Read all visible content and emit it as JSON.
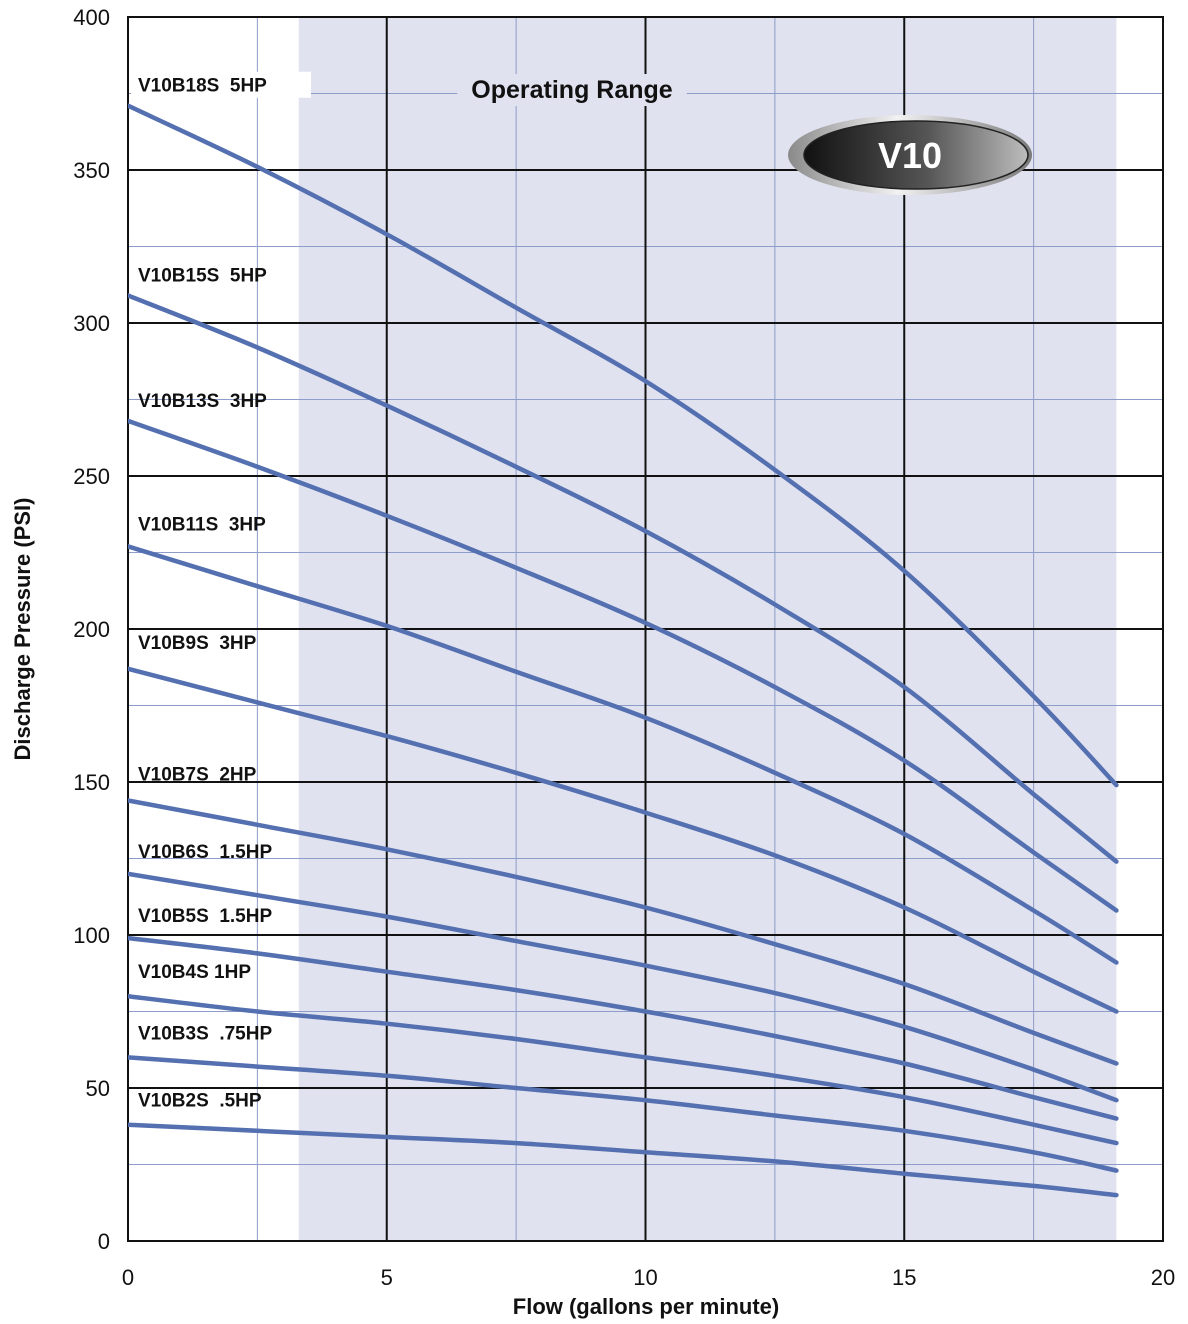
{
  "chart_data": {
    "type": "line",
    "title": "",
    "xlabel": "Flow (gallons per minute)",
    "ylabel": "Discharge Pressure (PSI)",
    "xlim": [
      0,
      20
    ],
    "ylim": [
      0,
      400
    ],
    "x_ticks": [
      0,
      5,
      10,
      15,
      20
    ],
    "y_ticks": [
      0,
      50,
      100,
      150,
      200,
      250,
      300,
      350,
      400
    ],
    "grid": true,
    "operating_range": {
      "label": "Operating Range",
      "x": [
        3.3,
        19.1
      ],
      "color": "#e0e2f0"
    },
    "badge": {
      "label": "V10"
    },
    "series_color": "#5470b0",
    "x": [
      0,
      2.5,
      5,
      7.5,
      10,
      12.5,
      15,
      17.5,
      19.1
    ],
    "series": [
      {
        "name": "V10B18S  5HP",
        "values": [
          371,
          351,
          329,
          305,
          281,
          252,
          219,
          178,
          149
        ]
      },
      {
        "name": "V10B15S  5HP",
        "values": [
          309,
          292,
          273,
          253,
          232,
          208,
          181,
          146,
          124
        ]
      },
      {
        "name": "V10B13S  3HP",
        "values": [
          268,
          253,
          237,
          220,
          202,
          181,
          157,
          127,
          108
        ]
      },
      {
        "name": "V10B11S  3HP",
        "values": [
          227,
          214,
          201,
          186,
          171,
          153,
          133,
          108,
          91
        ]
      },
      {
        "name": "V10B9S  3HP",
        "values": [
          187,
          176,
          165,
          153,
          140,
          126,
          109,
          88,
          75
        ]
      },
      {
        "name": "V10B7S  2HP",
        "values": [
          144,
          136,
          128,
          119,
          109,
          97,
          84,
          68,
          58
        ]
      },
      {
        "name": "V10B6S  1.5HP",
        "values": [
          120,
          113,
          106,
          98,
          90,
          81,
          70,
          56,
          46
        ]
      },
      {
        "name": "V10B5S  1.5HP",
        "values": [
          99,
          94,
          88,
          82,
          75,
          67,
          58,
          47,
          40
        ]
      },
      {
        "name": "V10B4S 1HP",
        "values": [
          80,
          75,
          71,
          66,
          60,
          54,
          47,
          38,
          32
        ]
      },
      {
        "name": "V10B3S  .75HP",
        "values": [
          60,
          57,
          54,
          50,
          46,
          41,
          36,
          29,
          23
        ]
      },
      {
        "name": "V10B2S  .5HP",
        "values": [
          38,
          36,
          34,
          32,
          29,
          26,
          22,
          18,
          15
        ]
      }
    ]
  }
}
